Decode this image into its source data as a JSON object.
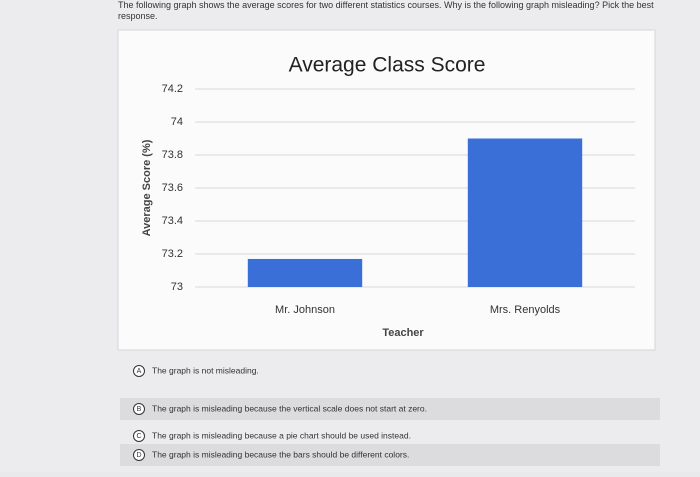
{
  "question": "The following graph shows the average scores for two different statistics courses. Why is the following graph misleading? Pick the best response.",
  "chart_data": {
    "type": "bar",
    "title": "Average Class Score",
    "x_label": "Teacher",
    "y_label": "Average Score (%)",
    "categories": [
      "Mr. Johnson",
      "Mrs. Renyolds"
    ],
    "values": [
      73.17,
      73.9
    ],
    "color": "#3a6fd8",
    "ylim": [
      73,
      74.2
    ],
    "yticks": [
      73,
      73.2,
      73.4,
      73.6,
      73.8,
      74,
      74.2
    ],
    "grid": true
  },
  "options": [
    {
      "letter": "A",
      "text": "The graph is not misleading."
    },
    {
      "letter": "B",
      "text": "The graph is misleading because the vertical scale does not start at zero."
    },
    {
      "letter": "C",
      "text": "The graph is misleading because a pie chart should be used instead."
    },
    {
      "letter": "D",
      "text": "The graph is misleading because the bars should be different colors."
    }
  ]
}
